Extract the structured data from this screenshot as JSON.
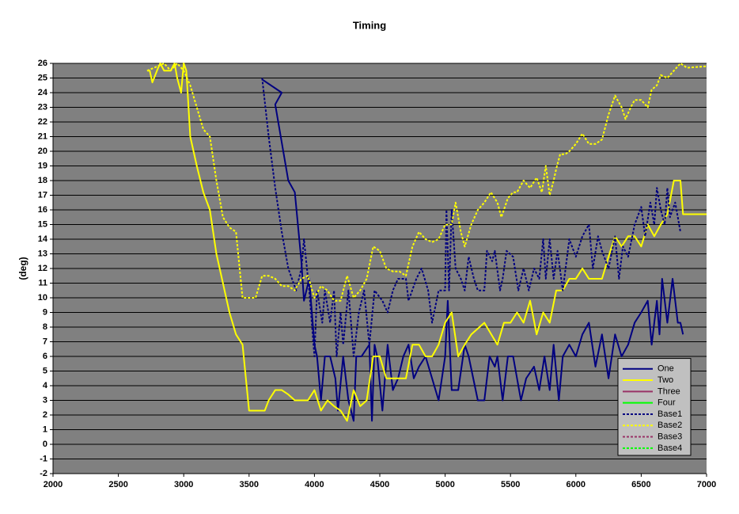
{
  "chart_data": {
    "type": "line",
    "title": "Timing",
    "y_label": "(deg)",
    "xlim": [
      2000,
      7000
    ],
    "xticks": [
      2000,
      2500,
      3000,
      3500,
      4000,
      4500,
      5000,
      5500,
      6000,
      6500,
      7000
    ],
    "ylim": [
      -2,
      26
    ],
    "yticks": [
      -2,
      -1,
      0,
      1,
      2,
      3,
      4,
      5,
      6,
      7,
      8,
      9,
      10,
      11,
      12,
      13,
      14,
      15,
      16,
      17,
      18,
      19,
      20,
      21,
      22,
      23,
      24,
      25,
      26
    ],
    "grid": true,
    "plot_background": "#808080",
    "legend": "lower right",
    "series": [
      {
        "name": "One",
        "color": "#000080",
        "dashed": false,
        "x": [
          3600,
          3750,
          3700,
          3800,
          3850,
          3900,
          3920,
          3960,
          4000,
          4020,
          4050,
          4080,
          4120,
          4160,
          4180,
          4220,
          4260,
          4300,
          4320,
          4360,
          4420,
          4440,
          4460,
          4480,
          4520,
          4560,
          4600,
          4640,
          4680,
          4720,
          4760,
          4800,
          4850,
          4900,
          4950,
          5000,
          5020,
          5050,
          5100,
          5150,
          5180,
          5250,
          5300,
          5340,
          5380,
          5400,
          5440,
          5480,
          5520,
          5580,
          5620,
          5680,
          5720,
          5760,
          5800,
          5830,
          5870,
          5900,
          5950,
          6000,
          6050,
          6100,
          6150,
          6200,
          6250,
          6300,
          6350,
          6400,
          6450,
          6500,
          6550,
          6580,
          6620,
          6640,
          6660,
          6700,
          6740,
          6780,
          6800,
          6820
        ],
        "values": [
          24.9,
          24.0,
          23.2,
          18,
          17.2,
          12.5,
          9.8,
          11.3,
          6.8,
          6.0,
          3.0,
          6.0,
          6.0,
          4.5,
          2.3,
          6.0,
          3.0,
          1.6,
          6.0,
          6.0,
          6.8,
          1.6,
          6.8,
          6.0,
          2.3,
          6.8,
          3.7,
          4.5,
          6.0,
          6.8,
          4.5,
          5.3,
          6.0,
          4.5,
          3.0,
          6.0,
          9.8,
          3.7,
          3.7,
          6.8,
          6.0,
          3.0,
          3.0,
          6.0,
          5.3,
          6.0,
          3.0,
          6.0,
          6.0,
          3.0,
          4.5,
          5.3,
          3.7,
          6.0,
          3.7,
          6.8,
          3.0,
          6.0,
          6.8,
          6.0,
          7.5,
          8.3,
          5.3,
          7.5,
          4.5,
          7.5,
          6.0,
          6.8,
          8.3,
          9.0,
          9.8,
          6.8,
          9.8,
          7.5,
          11.3,
          8.3,
          11.3,
          8.3,
          8.3,
          7.5
        ]
      },
      {
        "name": "Two",
        "color": "#ffff00",
        "dashed": false,
        "x": [
          2720,
          2740,
          2760,
          2800,
          2820,
          2850,
          2900,
          2930,
          2950,
          2980,
          3000,
          3020,
          3050,
          3100,
          3150,
          3200,
          3250,
          3300,
          3350,
          3400,
          3450,
          3500,
          3620,
          3650,
          3700,
          3750,
          3800,
          3850,
          3900,
          3950,
          4000,
          4050,
          4100,
          4150,
          4200,
          4250,
          4300,
          4350,
          4400,
          4450,
          4500,
          4550,
          4650,
          4700,
          4750,
          4800,
          4850,
          4900,
          4950,
          5000,
          5050,
          5100,
          5150,
          5200,
          5300,
          5400,
          5450,
          5500,
          5550,
          5600,
          5650,
          5700,
          5750,
          5800,
          5850,
          5900,
          5950,
          6000,
          6050,
          6100,
          6200,
          6250,
          6300,
          6350,
          6400,
          6450,
          6500,
          6550,
          6600,
          6650,
          6700,
          6750,
          6800,
          6820,
          7000
        ],
        "values": [
          25.5,
          25.5,
          24.7,
          25.6,
          26,
          25.5,
          25.5,
          26,
          25,
          24,
          26,
          25.5,
          21,
          19,
          17.2,
          16,
          13,
          11,
          9,
          7.5,
          6.8,
          2.3,
          2.3,
          3,
          3.7,
          3.7,
          3.4,
          3.0,
          3.0,
          3.0,
          3.7,
          2.3,
          3.0,
          2.6,
          2.3,
          1.6,
          3.7,
          2.6,
          3.0,
          6.0,
          6.0,
          4.5,
          4.5,
          4.5,
          6.8,
          6.8,
          6.0,
          6.0,
          6.8,
          8.3,
          9.0,
          6.0,
          6.8,
          7.5,
          8.3,
          6.8,
          8.3,
          8.3,
          9.0,
          8.3,
          9.8,
          7.5,
          9.0,
          8.3,
          10.5,
          10.5,
          11.3,
          11.3,
          12.0,
          11.3,
          11.3,
          12.8,
          14.2,
          13.5,
          14.2,
          14.2,
          13.5,
          15.0,
          14.2,
          15.0,
          15.7,
          18.0,
          18.0,
          15.7,
          15.7
        ]
      },
      {
        "name": "Three",
        "color": "#993366",
        "dashed": false,
        "x": [],
        "values": []
      },
      {
        "name": "Four",
        "color": "#00ff00",
        "dashed": false,
        "x": [],
        "values": []
      },
      {
        "name": "Base1",
        "color": "#000080",
        "dashed": true,
        "x": [
          3600,
          3650,
          3700,
          3750,
          3800,
          3860,
          3900,
          3920,
          3960,
          4000,
          4020,
          4060,
          4080,
          4120,
          4150,
          4170,
          4200,
          4220,
          4260,
          4280,
          4300,
          4340,
          4380,
          4420,
          4460,
          4520,
          4560,
          4600,
          4640,
          4700,
          4720,
          4780,
          4820,
          4870,
          4900,
          4950,
          5000,
          5010,
          5030,
          5050,
          5080,
          5120,
          5150,
          5180,
          5220,
          5250,
          5300,
          5320,
          5360,
          5380,
          5420,
          5440,
          5470,
          5520,
          5560,
          5600,
          5640,
          5680,
          5720,
          5750,
          5770,
          5800,
          5830,
          5860,
          5900,
          5950,
          6000,
          6050,
          6100,
          6130,
          6170,
          6200,
          6250,
          6300,
          6330,
          6360,
          6400,
          6450,
          6500,
          6530,
          6570,
          6600,
          6620,
          6650,
          6680,
          6700,
          6720,
          6760,
          6800
        ],
        "values": [
          25,
          21,
          17.5,
          14.5,
          12,
          10.5,
          12,
          14,
          10.5,
          6.0,
          10.5,
          8.3,
          10.5,
          8.3,
          10.5,
          6.0,
          9.0,
          6.8,
          10.5,
          8.3,
          6.0,
          9.0,
          10.5,
          6.8,
          10.5,
          9.8,
          9.0,
          10.5,
          11.3,
          11.3,
          9.8,
          11.3,
          12.0,
          10.5,
          8.3,
          10.5,
          10.5,
          16,
          10.5,
          16,
          12,
          11.3,
          10.5,
          12.8,
          11.3,
          10.5,
          10.5,
          13.2,
          12.5,
          13.2,
          10.5,
          11.3,
          13.2,
          12.8,
          10.5,
          12.0,
          10.5,
          12.0,
          11.3,
          14.0,
          11.3,
          14.0,
          11.3,
          13.2,
          10.5,
          14.0,
          12.8,
          14.2,
          15.0,
          12.0,
          14.2,
          13.2,
          12.0,
          14.2,
          11.3,
          13.5,
          12.8,
          15.0,
          16.2,
          14.2,
          16.5,
          15.0,
          17.5,
          16.0,
          15.0,
          17.5,
          15.5,
          16.5,
          14.5
        ]
      },
      {
        "name": "Base2",
        "color": "#ffff00",
        "dashed": true,
        "x": [
          2720,
          2800,
          2850,
          2900,
          2950,
          3000,
          3050,
          3100,
          3150,
          3200,
          3250,
          3300,
          3350,
          3400,
          3450,
          3550,
          3600,
          3650,
          3700,
          3750,
          3800,
          3850,
          3900,
          3950,
          4000,
          4050,
          4100,
          4150,
          4200,
          4250,
          4300,
          4350,
          4400,
          4450,
          4500,
          4550,
          4600,
          4650,
          4700,
          4750,
          4800,
          4850,
          4900,
          4950,
          5000,
          5050,
          5080,
          5120,
          5150,
          5200,
          5250,
          5300,
          5350,
          5400,
          5430,
          5480,
          5520,
          5550,
          5600,
          5650,
          5700,
          5740,
          5770,
          5800,
          5830,
          5850,
          5880,
          5920,
          5950,
          6000,
          6050,
          6100,
          6150,
          6200,
          6250,
          6300,
          6350,
          6380,
          6420,
          6450,
          6500,
          6550,
          6580,
          6620,
          6650,
          6700,
          6750,
          6800,
          6850,
          7000
        ],
        "values": [
          25.5,
          25.8,
          26,
          25.5,
          26,
          25.5,
          24.5,
          23,
          21.5,
          21,
          18,
          15.5,
          14.8,
          14.5,
          10,
          10,
          11.5,
          11.5,
          11.3,
          10.8,
          10.8,
          10.5,
          11.3,
          11.5,
          10.0,
          10.8,
          10.5,
          9.8,
          9.8,
          11.5,
          10.0,
          10.5,
          11.3,
          13.5,
          13.2,
          12.0,
          11.8,
          11.8,
          11.5,
          13.5,
          14.5,
          14.0,
          13.8,
          14.0,
          15.0,
          15.0,
          16.5,
          14.5,
          13.5,
          15.0,
          16.0,
          16.5,
          17.2,
          16.5,
          15.5,
          16.8,
          17.2,
          17.2,
          18.0,
          17.5,
          18.2,
          17.2,
          19.0,
          17.0,
          18.0,
          18.8,
          19.8,
          19.8,
          20.0,
          20.5,
          21.2,
          20.5,
          20.5,
          20.8,
          22.5,
          23.8,
          23,
          22.2,
          23.0,
          23.5,
          23.5,
          23.0,
          24.2,
          24.5,
          25.2,
          25.0,
          25.5,
          26.0,
          25.7,
          25.8
        ]
      },
      {
        "name": "Base3",
        "color": "#993366",
        "dashed": true,
        "x": [],
        "values": []
      },
      {
        "name": "Base4",
        "color": "#00ff00",
        "dashed": true,
        "x": [],
        "values": []
      }
    ]
  }
}
